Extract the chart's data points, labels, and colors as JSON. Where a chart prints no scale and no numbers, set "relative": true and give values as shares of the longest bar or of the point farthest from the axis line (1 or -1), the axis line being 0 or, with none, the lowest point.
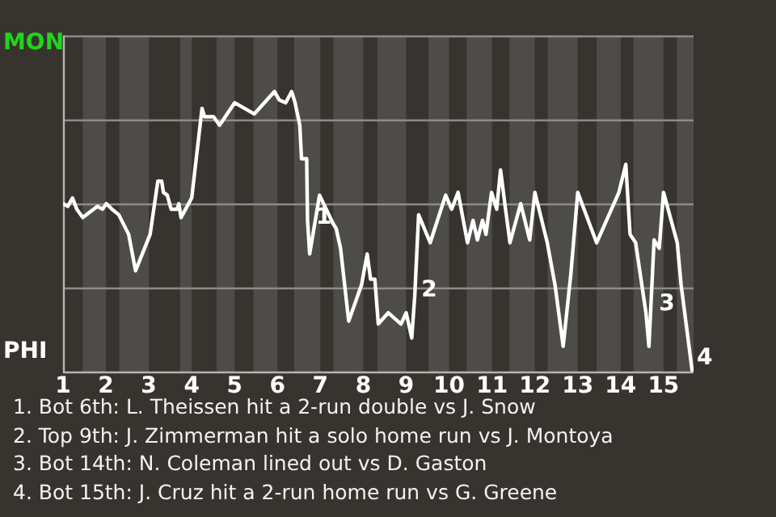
{
  "chart_data": {
    "type": "line",
    "relative": true,
    "x": [
      1,
      1.11,
      1.22,
      1.32,
      1.46,
      1.8,
      1.92,
      2.01,
      2.14,
      2.3,
      2.53,
      2.69,
      3.03,
      3.21,
      3.3,
      3.34,
      3.43,
      3.52,
      3.66,
      3.7,
      3.75,
      4,
      4.24,
      4.3,
      4.51,
      4.65,
      5,
      5.46,
      5.93,
      6.04,
      6.19,
      6.33,
      6.41,
      6.52,
      6.56,
      6.68,
      6.7,
      6.75,
      6.98,
      7.29,
      7.37,
      7.47,
      7.66,
      7.96,
      8.09,
      8.17,
      8.27,
      8.35,
      8.58,
      8.88,
      9,
      9.13,
      9.2,
      9.29,
      9.56,
      9.92,
      10.06,
      10.21,
      10.43,
      10.56,
      10.66,
      10.78,
      10.86,
      10.99,
      11.11,
      11.2,
      11.3,
      11.42,
      11.67,
      11.88,
      12,
      12.29,
      12.47,
      12.66,
      12.84,
      13,
      13.44,
      13.96,
      14.12,
      14.22,
      14.35,
      14.59,
      14.66,
      14.78,
      14.9,
      15,
      15.32,
      15.41,
      15.67
    ],
    "series": [
      {
        "color": "#ffffff",
        "values": [
          0.6,
          0.59,
          0.62,
          0.58,
          0.55,
          0.59,
          0.58,
          0.6,
          0.58,
          0.56,
          0.49,
          0.36,
          0.49,
          0.68,
          0.68,
          0.64,
          0.63,
          0.58,
          0.58,
          0.6,
          0.55,
          0.62,
          0.94,
          0.91,
          0.91,
          0.88,
          0.96,
          0.92,
          1,
          0.97,
          0.96,
          1,
          0.96,
          0.88,
          0.76,
          0.76,
          0.54,
          0.42,
          0.63,
          0.53,
          0.51,
          0.44,
          0.18,
          0.31,
          0.42,
          0.33,
          0.33,
          0.17,
          0.21,
          0.17,
          0.21,
          0.12,
          0.27,
          0.56,
          0.46,
          0.63,
          0.58,
          0.64,
          0.46,
          0.54,
          0.47,
          0.54,
          0.49,
          0.64,
          0.58,
          0.72,
          0.6,
          0.46,
          0.6,
          0.47,
          0.64,
          0.46,
          0.31,
          0.09,
          0.35,
          0.64,
          0.46,
          0.64,
          0.74,
          0.49,
          0.46,
          0.21,
          0.09,
          0.47,
          0.44,
          0.64,
          0.46,
          0.31,
          0
        ],
        "name": null
      }
    ],
    "xlim": [
      1,
      15.7
    ],
    "xticks": [
      1,
      2,
      3,
      4,
      5,
      6,
      7,
      8,
      9,
      10,
      11,
      12,
      13,
      14,
      15
    ],
    "grid": "y",
    "legend": false,
    "marker": "none",
    "line_style": "solid",
    "bands": [
      {
        "axis": "x",
        "from": 1.46,
        "to": 2,
        "color": "#4e4c49"
      },
      {
        "axis": "x",
        "from": 2.31,
        "to": 3,
        "color": "#4e4c49"
      },
      {
        "axis": "x",
        "from": 3.73,
        "to": 4,
        "color": "#4e4c49"
      },
      {
        "axis": "x",
        "from": 4.58,
        "to": 5,
        "color": "#4e4c49"
      },
      {
        "axis": "x",
        "from": 5.44,
        "to": 6,
        "color": "#4e4c49"
      },
      {
        "axis": "x",
        "from": 6.39,
        "to": 7,
        "color": "#4e4c49"
      },
      {
        "axis": "x",
        "from": 7.3,
        "to": 8,
        "color": "#4e4c49"
      },
      {
        "axis": "x",
        "from": 8.33,
        "to": 9,
        "color": "#4e4c49"
      },
      {
        "axis": "x",
        "from": 9.52,
        "to": 10,
        "color": "#4e4c49"
      },
      {
        "axis": "x",
        "from": 10.41,
        "to": 11,
        "color": "#4e4c49"
      },
      {
        "axis": "x",
        "from": 11.41,
        "to": 12,
        "color": "#4e4c49"
      },
      {
        "axis": "x",
        "from": 12.3,
        "to": 13,
        "color": "#4e4c49"
      },
      {
        "axis": "x",
        "from": 13.44,
        "to": 14,
        "color": "#4e4c49"
      },
      {
        "axis": "x",
        "from": 14.3,
        "to": 15,
        "color": "#4e4c49"
      },
      {
        "axis": "x",
        "from": 15.31,
        "to": 15.7,
        "color": "#4e4c49"
      }
    ],
    "annotations": [
      "MON",
      "PHI",
      {
        "text": "1",
        "x": 6.78,
        "y": 0.55
      },
      {
        "text": "2",
        "x": 9.24,
        "y": 0.29
      },
      {
        "text": "3",
        "x": 14.78,
        "y": 0.24
      },
      {
        "text": "4",
        "x": 15.66,
        "y": 0.01
      },
      "1. Bot 6th: L. Theissen hit a 2-run double vs J. Snow",
      "2. Top 9th: J. Zimmerman hit a solo home run vs J. Montoya",
      "3. Bot 14th: N. Coleman lined out vs D. Gaston",
      "4. Bot 15th: J. Cruz hit a 2-run home run vs G. Greene"
    ]
  }
}
